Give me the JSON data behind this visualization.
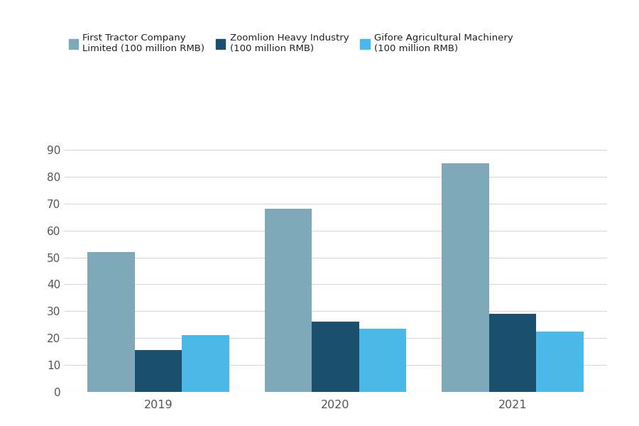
{
  "years": [
    "2019",
    "2020",
    "2021"
  ],
  "series": [
    {
      "label": "First Tractor Company\nLimited (100 million RMB)",
      "values": [
        52,
        68,
        85
      ],
      "color": "#7fa8b8"
    },
    {
      "label": "Zoomlion Heavy Industry\n(100 million RMB)",
      "values": [
        15.5,
        26,
        29
      ],
      "color": "#1a4f6e"
    },
    {
      "label": "Gifore Agricultural Machinery\n(100 million RMB)",
      "values": [
        21,
        23.5,
        22.5
      ],
      "color": "#4ab8e8"
    }
  ],
  "ylim": [
    0,
    95
  ],
  "yticks": [
    0,
    10,
    20,
    30,
    40,
    50,
    60,
    70,
    80,
    90
  ],
  "background_color": "#ffffff",
  "grid_color": "#d8d8d8",
  "bar_width": 0.2,
  "group_positions": [
    0.25,
    1.0,
    1.75
  ]
}
